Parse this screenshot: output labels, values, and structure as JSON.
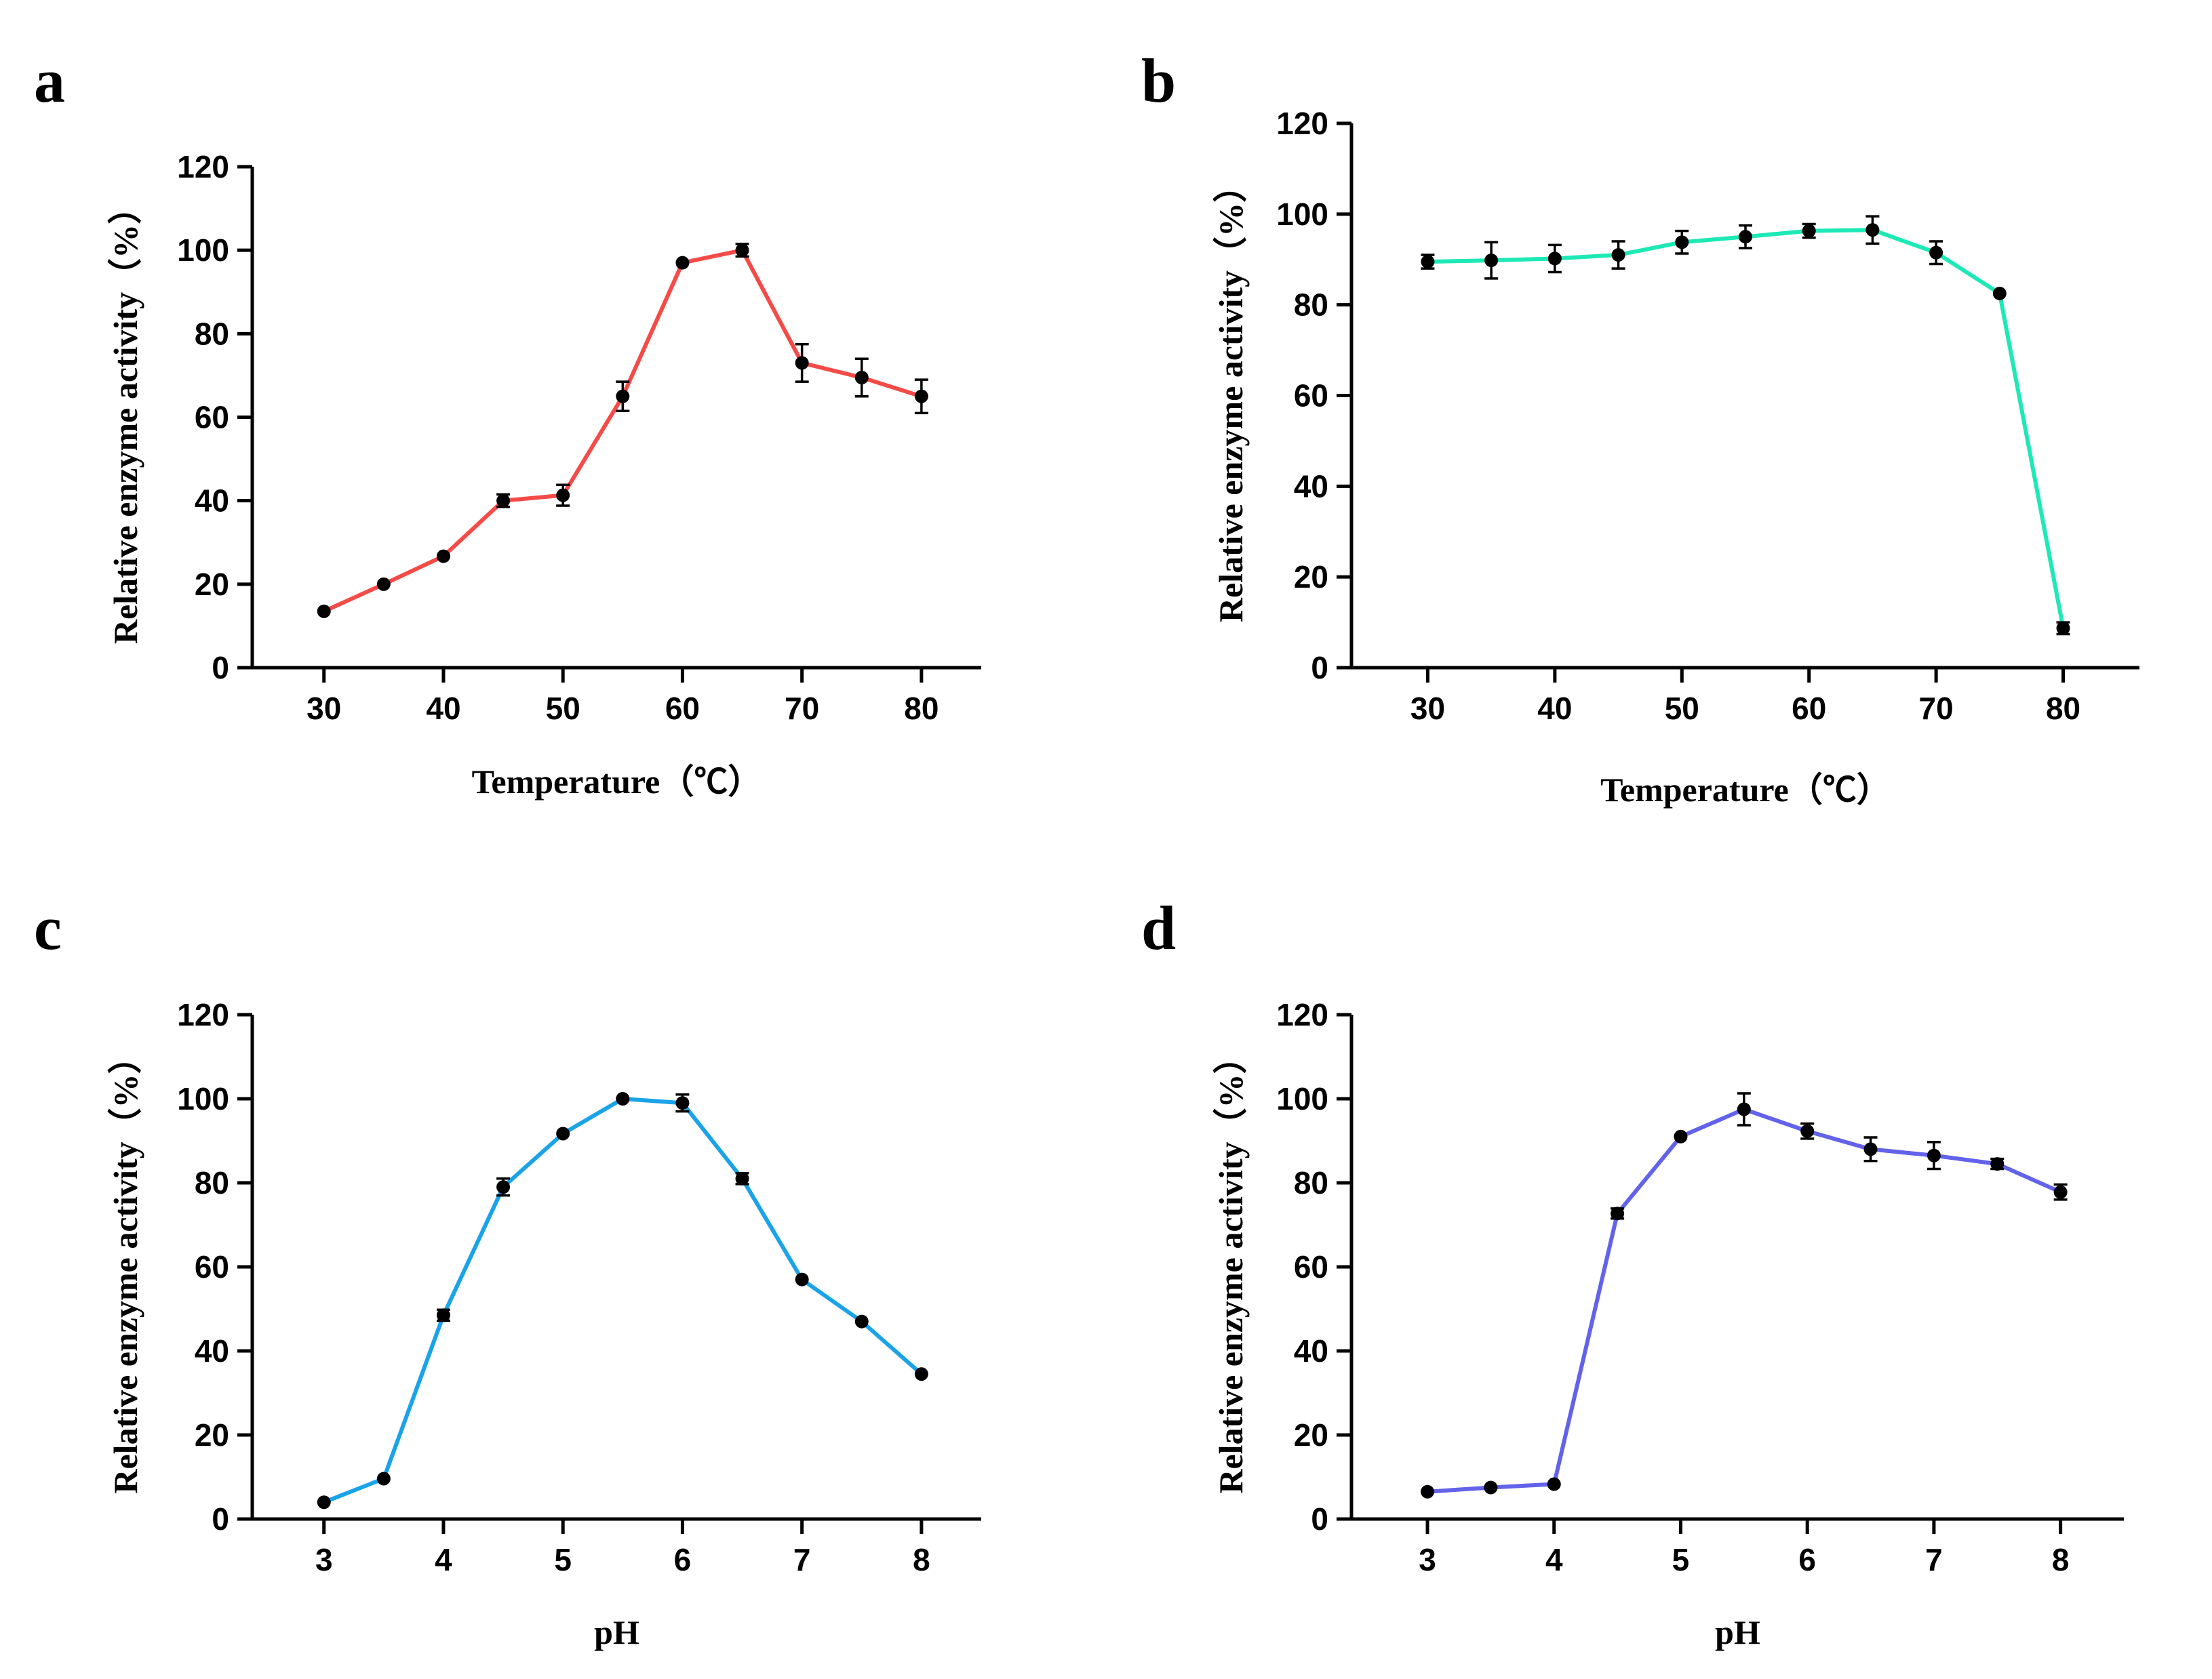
{
  "chart_data": [
    {
      "id": "a",
      "panel_label": "a",
      "type": "line",
      "color": "#f44b48",
      "x": [
        30,
        35,
        40,
        45,
        50,
        55,
        60,
        65,
        70,
        75,
        80
      ],
      "values": [
        13.5,
        20,
        26.7,
        40,
        41.3,
        65,
        97,
        100,
        73,
        69.5,
        65
      ],
      "errors": [
        0.6,
        0.6,
        0.8,
        1.5,
        2.5,
        3.5,
        0.6,
        1.5,
        4.5,
        4.5,
        4.0
      ],
      "xticks": [
        "30",
        "40",
        "50",
        "60",
        "70",
        "80"
      ],
      "xtick_values": [
        30,
        40,
        50,
        60,
        70,
        80
      ],
      "yticks": [
        "0",
        "20",
        "40",
        "60",
        "80",
        "100",
        "120"
      ],
      "ytick_values": [
        0,
        20,
        40,
        60,
        80,
        100,
        120
      ],
      "xlim": [
        24,
        85
      ],
      "ylim": [
        0,
        120
      ],
      "xlabel": "Temperature（℃）",
      "ylabel": "Relative enzyme activity（%）"
    },
    {
      "id": "b",
      "panel_label": "b",
      "type": "line",
      "color": "#1de9b6",
      "x": [
        30,
        35,
        40,
        45,
        50,
        55,
        60,
        65,
        70,
        75,
        80
      ],
      "values": [
        89.5,
        89.8,
        90.2,
        91,
        93.8,
        95,
        96.3,
        96.5,
        91.5,
        82.5,
        8.7
      ],
      "errors": [
        1.5,
        4.0,
        3.0,
        3.0,
        2.5,
        2.5,
        1.5,
        3.0,
        2.5,
        0.6,
        1.3
      ],
      "xticks": [
        "30",
        "40",
        "50",
        "60",
        "70",
        "80"
      ],
      "xtick_values": [
        30,
        40,
        50,
        60,
        70,
        80
      ],
      "yticks": [
        "0",
        "20",
        "40",
        "60",
        "80",
        "100",
        "120"
      ],
      "ytick_values": [
        0,
        20,
        40,
        60,
        80,
        100,
        120
      ],
      "xlim": [
        24,
        86
      ],
      "ylim": [
        0,
        120
      ],
      "xlabel": "Temperature（℃）",
      "ylabel": "Relative enzyme activity（%）"
    },
    {
      "id": "c",
      "panel_label": "c",
      "type": "line",
      "color": "#1aa3e8",
      "x": [
        3,
        3.5,
        4,
        4.5,
        5,
        5.5,
        6,
        6.5,
        7,
        7.5,
        8
      ],
      "values": [
        4,
        9.6,
        48.5,
        79,
        91.7,
        100,
        99,
        81,
        57,
        47,
        34.5
      ],
      "errors": [
        0.3,
        0.5,
        1.3,
        2.0,
        0.8,
        0.4,
        2.0,
        1.3,
        0.6,
        0.4,
        0.4
      ],
      "xticks": [
        "3",
        "4",
        "5",
        "6",
        "7",
        "8"
      ],
      "xtick_values": [
        3,
        4,
        5,
        6,
        7,
        8
      ],
      "yticks": [
        "0",
        "20",
        "40",
        "60",
        "80",
        "100",
        "120"
      ],
      "ytick_values": [
        0,
        20,
        40,
        60,
        80,
        100,
        120
      ],
      "xlim": [
        2.4,
        8.5
      ],
      "ylim": [
        0,
        120
      ],
      "xlabel": "pH",
      "ylabel": "Relative enzyme activity（%）"
    },
    {
      "id": "d",
      "panel_label": "d",
      "type": "line",
      "color": "#6262ea",
      "x": [
        3,
        3.5,
        4,
        4.5,
        5,
        5.5,
        6,
        6.5,
        7,
        7.5,
        8
      ],
      "values": [
        6.5,
        7.5,
        8.3,
        72.7,
        91,
        97.5,
        92.3,
        88,
        86.5,
        84.5,
        77.8
      ],
      "errors": [
        0.4,
        0.5,
        0.5,
        1.2,
        0.6,
        3.8,
        1.8,
        2.8,
        3.2,
        1.2,
        1.8
      ],
      "xticks": [
        "3",
        "4",
        "5",
        "6",
        "7",
        "8"
      ],
      "xtick_values": [
        3,
        4,
        5,
        6,
        7,
        8
      ],
      "yticks": [
        "0",
        "20",
        "40",
        "60",
        "80",
        "100",
        "120"
      ],
      "ytick_values": [
        0,
        20,
        40,
        60,
        80,
        100,
        120
      ],
      "xlim": [
        2.4,
        8.5
      ],
      "ylim": [
        0,
        120
      ],
      "xlabel": "pH",
      "ylabel": "Relative enzyme activity（%）"
    }
  ]
}
